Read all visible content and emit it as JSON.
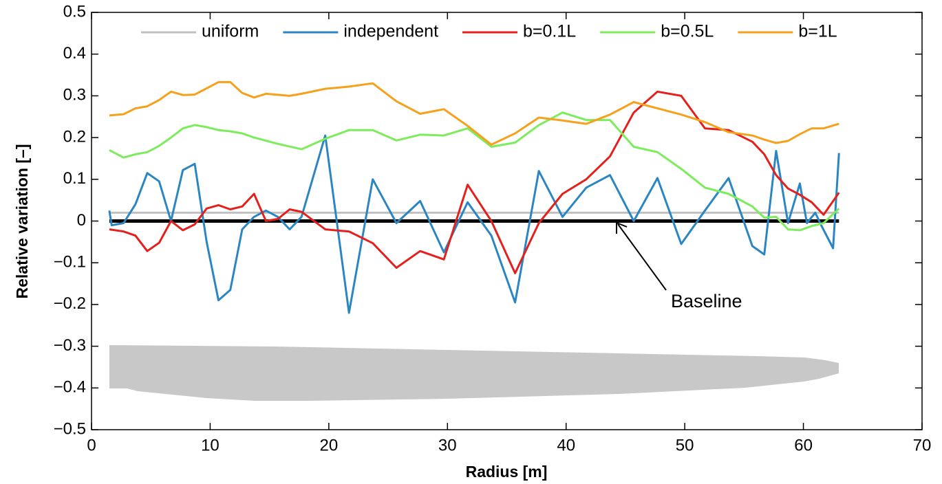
{
  "chart_data": {
    "type": "line",
    "xlabel": "Radius [m]",
    "ylabel": "Relative variation [–]",
    "xlim": [
      0,
      70
    ],
    "xticks": [
      0,
      10,
      20,
      30,
      40,
      50,
      60,
      70
    ],
    "ylim": [
      -0.5,
      0.5
    ],
    "yticks": [
      {
        "value": -0.5,
        "label": "−0.5"
      },
      {
        "value": -0.4,
        "label": "−0.4"
      },
      {
        "value": -0.3,
        "label": "−0.3"
      },
      {
        "value": -0.2,
        "label": "−0.2"
      },
      {
        "value": -0.1,
        "label": "−0.1"
      },
      0,
      0.1,
      0.2,
      0.3,
      0.4,
      0.5
    ],
    "grid": false,
    "legend": "top",
    "baseline": {
      "label": "Baseline",
      "color": "#000000",
      "x": [
        1.5,
        63
      ],
      "values": [
        0,
        0
      ]
    },
    "series": [
      {
        "name": "uniform",
        "color": "#c0c0c0",
        "x": [
          1.5,
          63
        ],
        "values": [
          0.02,
          0.02
        ]
      },
      {
        "name": "independent",
        "color": "#2a86c2",
        "x": [
          1.5,
          1.7,
          2.7,
          3.7,
          4.7,
          5.7,
          6.7,
          7.7,
          8.7,
          9.7,
          10.7,
          11.7,
          12.7,
          13.7,
          14.7,
          15.7,
          16.7,
          17.7,
          19.7,
          21.7,
          23.7,
          25.7,
          27.7,
          29.7,
          31.7,
          33.7,
          35.7,
          37.7,
          39.7,
          41.7,
          43.7,
          45.7,
          47.7,
          49.7,
          51.7,
          53.7,
          55.7,
          56.7,
          57.7,
          58.7,
          59.7,
          60.3,
          61,
          61.5,
          62.5,
          63
        ],
        "values": [
          0.025,
          -0.01,
          -0.005,
          0.04,
          0.115,
          0.095,
          0,
          0.122,
          0.137,
          -0.05,
          -0.19,
          -0.165,
          -0.02,
          0.01,
          0.025,
          0.01,
          -0.02,
          0.01,
          0.205,
          -0.22,
          0.1,
          -0.005,
          0.048,
          -0.075,
          0.045,
          -0.035,
          -0.195,
          0.12,
          0.01,
          0.08,
          0.11,
          0,
          0.103,
          -0.055,
          0.025,
          0.103,
          -0.06,
          -0.08,
          0.168,
          -0.005,
          0.09,
          -0.005,
          0.02,
          -0.01,
          -0.065,
          0.163
        ]
      },
      {
        "name": "b=0.1L",
        "color": "#e4201c",
        "x": [
          1.5,
          2.7,
          3.7,
          4.7,
          5.7,
          6.7,
          7.7,
          8.7,
          9.7,
          10.7,
          11.7,
          12.7,
          13.7,
          14.7,
          15.7,
          16.7,
          17.7,
          19.7,
          21.7,
          23.7,
          25.7,
          27.7,
          29.7,
          31.7,
          33.7,
          35.7,
          37.7,
          39.7,
          41.7,
          43.7,
          45.7,
          47.7,
          49.7,
          51.7,
          53.7,
          55.7,
          56.7,
          57.7,
          58.7,
          59.7,
          60.7,
          61.7,
          63
        ],
        "values": [
          -0.02,
          -0.025,
          -0.035,
          -0.072,
          -0.052,
          0,
          -0.022,
          -0.008,
          0.03,
          0.038,
          0.028,
          0.035,
          0.065,
          0,
          0.005,
          0.028,
          0.022,
          -0.02,
          -0.025,
          -0.053,
          -0.112,
          -0.072,
          -0.092,
          0.087,
          0,
          -0.125,
          -0.005,
          0.065,
          0.1,
          0.155,
          0.26,
          0.31,
          0.3,
          0.222,
          0.218,
          0.19,
          0.16,
          0.11,
          0.078,
          0.063,
          0.045,
          0.015,
          0.068
        ]
      },
      {
        "name": "b=0.5L",
        "color": "#7cec5c",
        "x": [
          1.5,
          2.7,
          3.7,
          4.7,
          5.7,
          6.7,
          7.7,
          8.7,
          9.7,
          10.7,
          11.7,
          12.7,
          13.7,
          15.7,
          17.7,
          19.7,
          21.7,
          23.7,
          25.7,
          27.7,
          29.7,
          31.7,
          33.7,
          35.7,
          37.7,
          39.7,
          41.7,
          43.7,
          45.7,
          47.7,
          49.7,
          51.7,
          53.7,
          55.7,
          56.7,
          57.7,
          58.7,
          59.7,
          60.7,
          61.7,
          63
        ],
        "values": [
          0.17,
          0.152,
          0.16,
          0.165,
          0.18,
          0.2,
          0.222,
          0.23,
          0.225,
          0.218,
          0.215,
          0.21,
          0.2,
          0.185,
          0.172,
          0.197,
          0.218,
          0.218,
          0.193,
          0.207,
          0.205,
          0.222,
          0.178,
          0.188,
          0.23,
          0.26,
          0.242,
          0.242,
          0.178,
          0.165,
          0.125,
          0.08,
          0.065,
          0.035,
          0.008,
          0.01,
          -0.02,
          -0.022,
          -0.012,
          -0.005,
          0.03
        ]
      },
      {
        "name": "b=1L",
        "color": "#f5a11c",
        "x": [
          1.5,
          2.7,
          3.7,
          4.7,
          5.7,
          6.7,
          7.7,
          8.7,
          9.7,
          10.7,
          11.7,
          12.7,
          13.7,
          14.7,
          16.7,
          17.7,
          19.7,
          21.7,
          23.7,
          25.7,
          27.7,
          29.7,
          31.7,
          33.7,
          35.7,
          37.7,
          39.7,
          41.7,
          43.7,
          45.7,
          47.7,
          49.7,
          51.7,
          53.7,
          55.7,
          56.7,
          57.7,
          58.7,
          59.7,
          60.7,
          61.7,
          63
        ],
        "values": [
          0.253,
          0.256,
          0.27,
          0.275,
          0.29,
          0.31,
          0.302,
          0.303,
          0.318,
          0.333,
          0.333,
          0.307,
          0.296,
          0.305,
          0.3,
          0.305,
          0.317,
          0.322,
          0.33,
          0.287,
          0.257,
          0.268,
          0.228,
          0.183,
          0.21,
          0.248,
          0.241,
          0.233,
          0.255,
          0.285,
          0.27,
          0.255,
          0.237,
          0.213,
          0.205,
          0.195,
          0.187,
          0.192,
          0.208,
          0.222,
          0.222,
          0.233
        ]
      }
    ]
  }
}
